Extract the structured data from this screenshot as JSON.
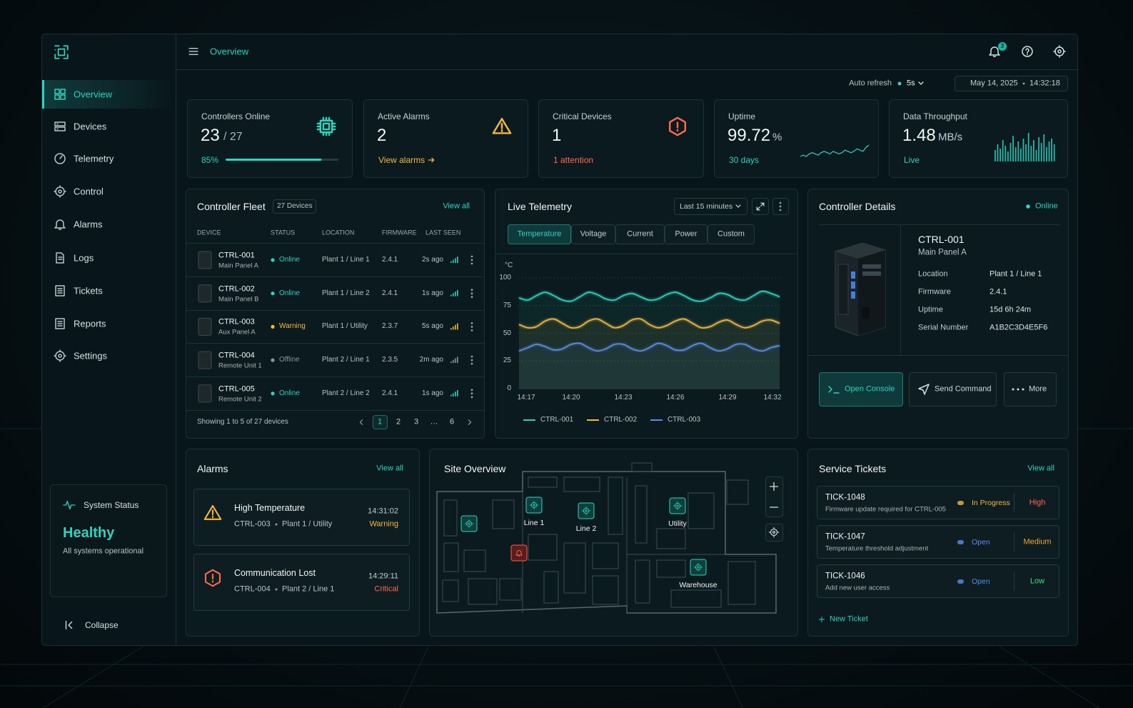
{
  "sidebar": {
    "nav": [
      "Overview",
      "Devices",
      "Telemetry",
      "Control",
      "Alarms",
      "Logs",
      "Tickets",
      "Reports",
      "Settings"
    ],
    "system_status": {
      "label": "System Status",
      "state": "Healthy",
      "message": "All systems operational"
    },
    "collapse": "Collapse"
  },
  "header": {
    "title": "Overview",
    "notifications": 3
  },
  "toolbar": {
    "auto_refresh": "Auto refresh",
    "interval": "5s",
    "date": "May 14, 2025",
    "time": "14:32:18"
  },
  "kpis": [
    {
      "label": "Controllers Online",
      "value": 23,
      "total": "/ 27",
      "progress": {
        "value": 85,
        "label": "85%"
      },
      "color": "#2dd4bf"
    },
    {
      "label": "Active Alarms",
      "value": 2,
      "note": "View alarms",
      "color": "#f5b83d"
    },
    {
      "label": "Critical Devices",
      "value": 1,
      "note": "1 attention",
      "color": "#ff6a4d"
    },
    {
      "label": "Uptime",
      "value": 99.72,
      "unit": "%",
      "note": "30 days",
      "color": "#2dd4bf",
      "trend": [
        5,
        6,
        5,
        7,
        8,
        7,
        6,
        8,
        9,
        8,
        7,
        9,
        8,
        7,
        8,
        10,
        9,
        8,
        9,
        11,
        10,
        9,
        12,
        14
      ]
    },
    {
      "label": "Data Throughput",
      "value": 1.48,
      "unit": "MB/s",
      "note": "Live",
      "color": "#2dd4bf",
      "trend": [
        0.8,
        1.2,
        0.9,
        1.5,
        1.1,
        0.7,
        1.3,
        1.8,
        1.0,
        1.4,
        0.9,
        1.6,
        1.2,
        2.0,
        1.1,
        1.5,
        0.8,
        1.7,
        1.3,
        1.9,
        1.0,
        1.4,
        1.6,
        1.2
      ]
    }
  ],
  "fleet": {
    "title": "Controller Fleet",
    "count": "27 Devices",
    "view_all": "View all",
    "columns": [
      "DEVICE",
      "STATUS",
      "LOCATION",
      "FIRMWARE",
      "LAST SEEN"
    ],
    "rows": [
      {
        "id": "CTRL-001",
        "name": "Main Panel A",
        "status": "Online",
        "status_color": "#2dd4bf",
        "location": "Plant 1 / Line 1",
        "firmware": "2.4.1",
        "last_seen": "2s ago"
      },
      {
        "id": "CTRL-002",
        "name": "Main Panel B",
        "status": "Online",
        "status_color": "#2dd4bf",
        "location": "Plant 1 / Line 2",
        "firmware": "2.4.1",
        "last_seen": "1s ago"
      },
      {
        "id": "CTRL-003",
        "name": "Aux Panel A",
        "status": "Warning",
        "status_color": "#f5b83d",
        "location": "Plant 1 / Utility",
        "firmware": "2.3.7",
        "last_seen": "5s ago"
      },
      {
        "id": "CTRL-004",
        "name": "Remote Unit 1",
        "status": "Offline",
        "status_color": "#8a9598",
        "location": "Plant 2 / Line 1",
        "firmware": "2.3.5",
        "last_seen": "2m ago"
      },
      {
        "id": "CTRL-005",
        "name": "Remote Unit 2",
        "status": "Online",
        "status_color": "#2dd4bf",
        "location": "Plant 2 / Line 2",
        "firmware": "2.4.1",
        "last_seen": "1s ago"
      }
    ],
    "footer": "Showing 1 to 5 of 27 devices",
    "pages": [
      1,
      2,
      3,
      "…",
      6
    ]
  },
  "telemetry": {
    "title": "Live Telemetry",
    "range": "Last 15 minutes",
    "tabs": [
      "Temperature",
      "Voltage",
      "Current",
      "Power",
      "Custom"
    ],
    "chart": {
      "type": "line",
      "y_unit": "°C",
      "ylim": [
        0,
        100
      ],
      "yticks": [
        0,
        25,
        50,
        75,
        100
      ],
      "grid": true,
      "categories": [
        "14:17",
        null,
        null,
        null,
        null,
        null,
        "14:20",
        null,
        null,
        null,
        null,
        null,
        "14:23",
        null,
        null,
        null,
        null,
        null,
        "14:26",
        null,
        null,
        null,
        null,
        null,
        "14:29",
        null,
        null,
        null,
        null,
        null,
        "14:32"
      ],
      "series": [
        {
          "name": "CTRL-001",
          "color": "#2dd4bf",
          "values": [
            82,
            80,
            84,
            87,
            84,
            80,
            79,
            83,
            87,
            85,
            81,
            80,
            84,
            86,
            83,
            80,
            81,
            85,
            87,
            84,
            80,
            79,
            82,
            86,
            85,
            81,
            80,
            84,
            88,
            86,
            83
          ]
        },
        {
          "name": "CTRL-002",
          "color": "#f5b83d",
          "values": [
            58,
            55,
            56,
            61,
            63,
            59,
            55,
            56,
            61,
            63,
            59,
            55,
            57,
            62,
            63,
            58,
            55,
            57,
            61,
            63,
            59,
            55,
            56,
            60,
            62,
            58,
            55,
            57,
            61,
            62,
            59
          ]
        },
        {
          "name": "CTRL-003",
          "color": "#5b8def",
          "values": [
            34,
            37,
            40,
            38,
            35,
            36,
            40,
            41,
            37,
            34,
            36,
            40,
            40,
            36,
            34,
            37,
            41,
            39,
            35,
            35,
            39,
            41,
            37,
            34,
            36,
            40,
            40,
            36,
            34,
            37,
            39
          ]
        }
      ]
    }
  },
  "details": {
    "title": "Controller Details",
    "status": "Online",
    "id": "CTRL-001",
    "name": "Main Panel A",
    "fields": [
      {
        "label": "Location",
        "value": "Plant 1 / Line 1"
      },
      {
        "label": "Firmware",
        "value": "2.4.1"
      },
      {
        "label": "Uptime",
        "value": "15d 6h 24m"
      },
      {
        "label": "Serial Number",
        "value": "A1B2C3D4E5F6"
      }
    ],
    "actions": [
      "Open Console",
      "Send Command",
      "More"
    ]
  },
  "alarms": {
    "title": "Alarms",
    "view_all": "View all",
    "items": [
      {
        "title": "High Temperature",
        "device": "CTRL-003",
        "location": "Plant 1 / Utility",
        "time": "14:31:02",
        "severity": "Warning",
        "color": "#f5b83d"
      },
      {
        "title": "Communication Lost",
        "device": "CTRL-004",
        "location": "Plant 2 / Line 1",
        "time": "14:29:11",
        "severity": "Critical",
        "color": "#ff6a4d"
      }
    ]
  },
  "site": {
    "title": "Site Overview",
    "zones": [
      "Line 1",
      "Line 2",
      "Utility",
      "Warehouse"
    ]
  },
  "tickets": {
    "title": "Service Tickets",
    "view_all": "View all",
    "items": [
      {
        "id": "TICK-1048",
        "desc": "Firmware update required for CTRL-005",
        "status": "In Progress",
        "status_color": "#f5b83d",
        "priority": "High",
        "priority_color": "#ff6a4d"
      },
      {
        "id": "TICK-1047",
        "desc": "Temperature threshold adjustment",
        "status": "Open",
        "status_color": "#5b8def",
        "priority": "Medium",
        "priority_color": "#f5a623"
      },
      {
        "id": "TICK-1046",
        "desc": "Add new user access",
        "status": "Open",
        "status_color": "#5b8def",
        "priority": "Low",
        "priority_color": "#4ade80"
      }
    ],
    "new": "New Ticket"
  }
}
